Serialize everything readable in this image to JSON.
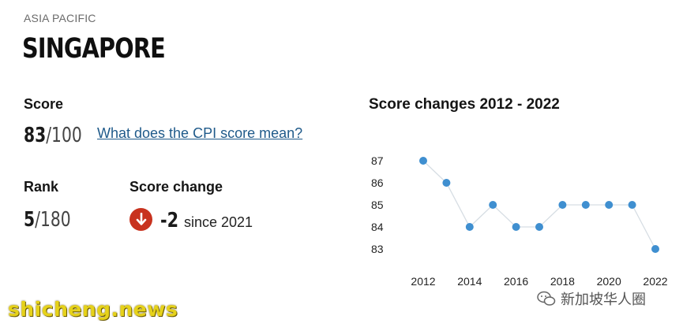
{
  "header": {
    "region": "ASIA PACIFIC",
    "country": "SINGAPORE"
  },
  "score": {
    "label": "Score",
    "value": "83",
    "denom": "/100",
    "link_text": "What does the CPI score mean?"
  },
  "rank": {
    "label": "Rank",
    "value": "5",
    "denom": "/180"
  },
  "score_change": {
    "label": "Score change",
    "value": "-2",
    "since": "since 2021",
    "direction_icon": "arrow-down-icon",
    "color": "#c8321e"
  },
  "chart_data": {
    "type": "line",
    "title": "Score changes 2012 - 2022",
    "x": [
      2012,
      2013,
      2014,
      2015,
      2016,
      2017,
      2018,
      2019,
      2020,
      2021,
      2022
    ],
    "y": [
      87,
      86,
      84,
      85,
      84,
      84,
      85,
      85,
      85,
      85,
      83
    ],
    "xticks": [
      "2012",
      "2014",
      "2016",
      "2018",
      "2020",
      "2022"
    ],
    "yticks": [
      "87",
      "86",
      "85",
      "84",
      "83"
    ],
    "ylim": [
      83,
      87
    ],
    "point_color": "#3f8fd0",
    "line_color": "#d6dde3"
  },
  "watermarks": {
    "left": "shicheng.news",
    "right": "新加坡华人圈"
  }
}
